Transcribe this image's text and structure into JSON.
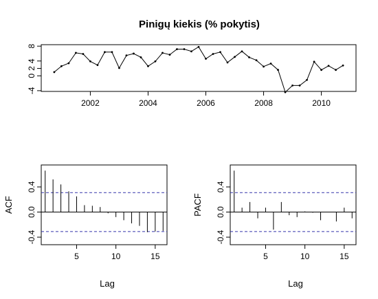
{
  "chart_data": [
    {
      "type": "line",
      "title": "Pinigų kiekis (% pokytis)",
      "xlabel": "",
      "ylabel": "",
      "xlim": [
        2000.3,
        2011.2
      ],
      "ylim": [
        -4.2,
        8.4
      ],
      "x_ticks": [
        2002,
        2004,
        2006,
        2008,
        2010
      ],
      "y_ticks": [
        -4,
        0,
        2,
        4,
        8
      ],
      "x_tick_labels": [
        "2002",
        "2004",
        "2006",
        "2008",
        "2010"
      ],
      "y_tick_labels": [
        "-4",
        "0",
        "2",
        "4",
        "8"
      ],
      "series": [
        {
          "x": [
            2000.75,
            2001.0,
            2001.25,
            2001.5,
            2001.75,
            2002.0,
            2002.25,
            2002.5,
            2002.75,
            2003.0,
            2003.25,
            2003.5,
            2003.75,
            2004.0,
            2004.25,
            2004.5,
            2004.75,
            2005.0,
            2005.25,
            2005.5,
            2005.75,
            2006.0,
            2006.25,
            2006.5,
            2006.75,
            2007.0,
            2007.25,
            2007.5,
            2007.75,
            2008.0,
            2008.25,
            2008.5,
            2008.75,
            2009.0,
            2009.25,
            2009.5,
            2009.75,
            2010.0,
            2010.25,
            2010.5,
            2010.75
          ],
          "values": [
            1.0,
            2.6,
            3.4,
            6.2,
            5.9,
            3.9,
            2.9,
            6.4,
            6.4,
            2.1,
            5.5,
            6.0,
            5.0,
            2.6,
            3.9,
            6.2,
            5.7,
            7.2,
            7.2,
            6.6,
            7.8,
            4.6,
            5.9,
            6.4,
            3.6,
            5.1,
            6.6,
            5.0,
            4.2,
            2.5,
            3.3,
            1.6,
            -4.4,
            -2.6,
            -2.6,
            -1.1,
            3.8,
            1.6,
            2.7,
            1.6,
            2.8
          ]
        }
      ]
    },
    {
      "type": "bar",
      "title": "",
      "xlabel": "Lag",
      "ylabel": "ACF",
      "xlim": [
        0.5,
        16.5
      ],
      "ylim": [
        -0.52,
        0.75
      ],
      "x_ticks": [
        5,
        10,
        15
      ],
      "y_ticks": [
        -0.4,
        0.0,
        0.4
      ],
      "x_tick_labels": [
        "5",
        "10",
        "15"
      ],
      "y_tick_labels": [
        "-0.4",
        "0.0",
        "0.4"
      ],
      "confidence_band": 0.31,
      "categories": [
        1,
        2,
        3,
        4,
        5,
        6,
        7,
        8,
        9,
        10,
        11,
        12,
        13,
        14,
        15,
        16
      ],
      "values": [
        0.66,
        0.52,
        0.44,
        0.33,
        0.25,
        0.11,
        0.1,
        0.08,
        -0.02,
        -0.08,
        -0.13,
        -0.18,
        -0.22,
        -0.32,
        -0.31,
        -0.3
      ]
    },
    {
      "type": "bar",
      "title": "",
      "xlabel": "Lag",
      "ylabel": "PACF",
      "xlim": [
        0.5,
        16.5
      ],
      "ylim": [
        -0.52,
        0.75
      ],
      "x_ticks": [
        5,
        10,
        15
      ],
      "y_ticks": [
        -0.4,
        0.0,
        0.4
      ],
      "x_tick_labels": [
        "5",
        "10",
        "15"
      ],
      "y_tick_labels": [
        "-0.4",
        "0.0",
        "0.4"
      ],
      "confidence_band": 0.31,
      "categories": [
        1,
        2,
        3,
        4,
        5,
        6,
        7,
        8,
        9,
        10,
        11,
        12,
        13,
        14,
        15,
        16
      ],
      "values": [
        0.66,
        0.07,
        0.16,
        -0.1,
        0.07,
        -0.28,
        0.16,
        -0.05,
        -0.08,
        0.01,
        -0.01,
        -0.13,
        0.0,
        -0.15,
        0.07,
        -0.1
      ]
    }
  ]
}
